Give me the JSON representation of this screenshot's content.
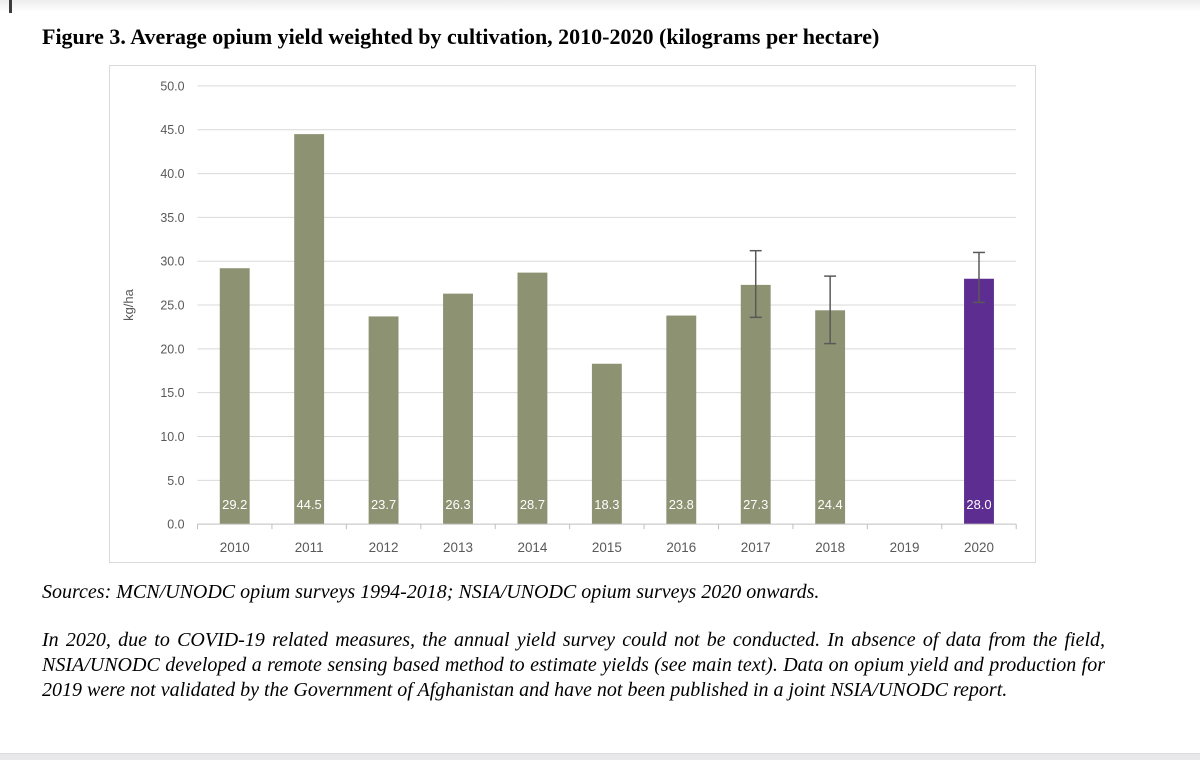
{
  "page": {
    "title": "Figure 3. Average opium yield weighted by cultivation, 2010-2020 (kilograms per hectare)",
    "sources": "Sources: MCN/UNODC opium surveys 1994-2018; NSIA/UNODC opium surveys 2020 onwards.",
    "footnote": "In 2020, due to COVID-19 related measures, the annual yield survey could not be conducted. In absence of data from the field, NSIA/UNODC developed a remote sensing based method to estimate yields (see main text). Data on opium yield and production for 2019 were not validated by the Government of Afghanistan and have not been published in a joint NSIA/UNODC report."
  },
  "chart_data": {
    "type": "bar",
    "title": "Figure 3. Average opium yield weighted by cultivation, 2010-2020 (kilograms per hectare)",
    "categories": [
      "2010",
      "2011",
      "2012",
      "2013",
      "2014",
      "2015",
      "2016",
      "2017",
      "2018",
      "2019",
      "2020"
    ],
    "values": [
      29.2,
      44.5,
      23.7,
      26.3,
      28.7,
      18.3,
      23.8,
      27.3,
      24.4,
      null,
      28.0
    ],
    "bar_labels": [
      "29.2",
      "44.5",
      "23.7",
      "26.3",
      "28.7",
      "18.3",
      "23.8",
      "27.3",
      "24.4",
      "",
      "28.0"
    ],
    "xlabel": "",
    "ylabel": "kg/ha",
    "ylim": [
      0,
      50
    ],
    "ytick_step": 5,
    "grid": true,
    "legend_position": "none",
    "bar_color": "#8D9272",
    "highlight_year": "2020",
    "highlight_color": "#5E2D91",
    "error_bars": [
      {
        "year": "2017",
        "low": 23.6,
        "high": 31.2
      },
      {
        "year": "2018",
        "low": 20.6,
        "high": 28.3
      },
      {
        "year": "2020",
        "low": 25.3,
        "high": 31.0
      }
    ],
    "grid_color": "#D9D9D9",
    "axis_color": "#BFBFBF",
    "tick_text_color": "#595959",
    "bar_label_color": "#FFFFFF",
    "error_bar_color": "#595959"
  }
}
